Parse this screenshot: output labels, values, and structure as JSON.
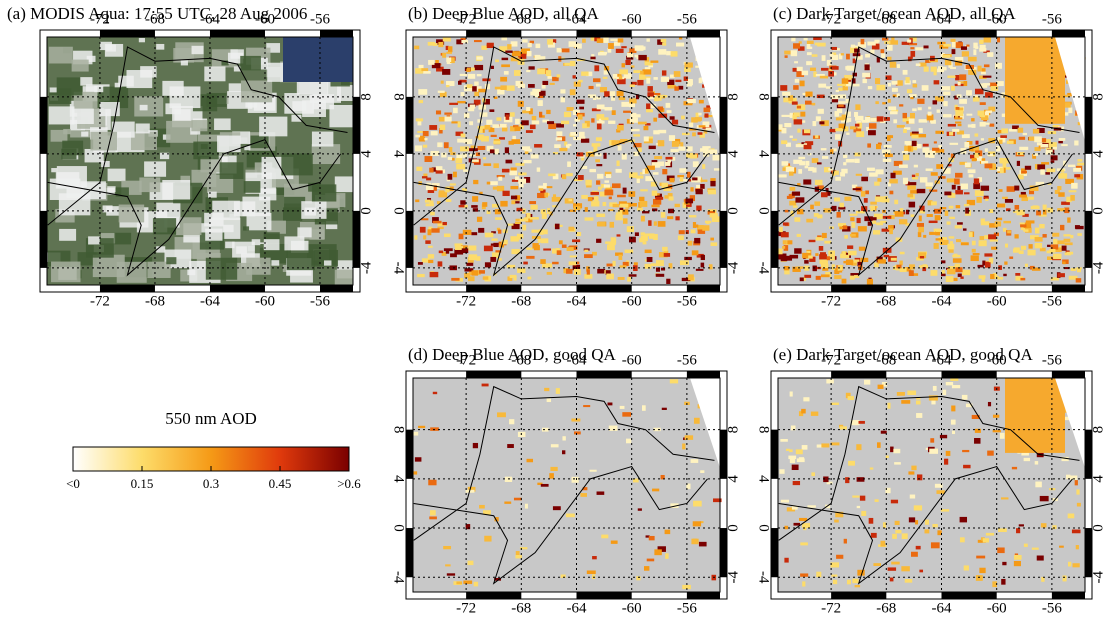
{
  "panels": [
    {
      "title": "(a) MODIS Aqua: 17:55 UTC, 28 Aug 2006"
    },
    {
      "title": "(b) Deep Blue AOD, all QA"
    },
    {
      "title": "(c) Dark Target/ocean AOD, all QA"
    },
    {
      "title": "(d) Deep Blue AOD, good QA"
    },
    {
      "title": "(e) Dark Target/ocean AOD, good QA"
    }
  ],
  "map": {
    "xlim": [
      -75.85,
      -53.6
    ],
    "ylim": [
      -5.2,
      12.2
    ],
    "xticks": [
      -72,
      -68,
      -64,
      -60,
      -56
    ],
    "yticks": [
      8,
      4,
      0,
      -4
    ]
  },
  "colorbar": {
    "title": "550 nm AOD",
    "lim": [
      0,
      0.6
    ],
    "ticks": [
      {
        "value": 0,
        "label": "<0"
      },
      0.15,
      0.3,
      0.45,
      {
        "value": 0.6,
        "label": ">0.6"
      }
    ]
  }
}
